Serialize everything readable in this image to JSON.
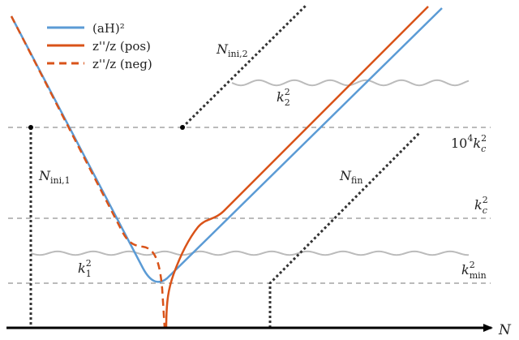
{
  "legend": {
    "aH_label": "(aH)²",
    "z_pos_label": "z''/z (pos)",
    "z_neg_label": "z''/z (neg)"
  },
  "labels": {
    "N_axis": "N",
    "N_ini_1": "N",
    "N_ini_1_sub": "ini,1",
    "N_ini_2": "N",
    "N_ini_2_sub": "ini,2",
    "N_fin": "N",
    "N_fin_sub": "fin",
    "k1": "k",
    "k1_sub": "1",
    "k1_sup": "2",
    "k2": "k",
    "k2_sub": "2",
    "k2_sup": "2",
    "level_high_prefix": "10",
    "level_high_exp": "4",
    "level_high_k": "k",
    "level_high_sub": "c",
    "level_high_sup": "2",
    "level_mid_k": "k",
    "level_mid_sub": "c",
    "level_mid_sup": "2",
    "level_low_k": "k",
    "level_low_sub": "min",
    "level_low_sup": "2"
  },
  "colors": {
    "aH": "#5b9bd5",
    "z_curve": "#d95319",
    "guide": "#333333",
    "dashed_level": "#777777",
    "wavy": "#bbbbbb",
    "axis": "#000000"
  }
}
